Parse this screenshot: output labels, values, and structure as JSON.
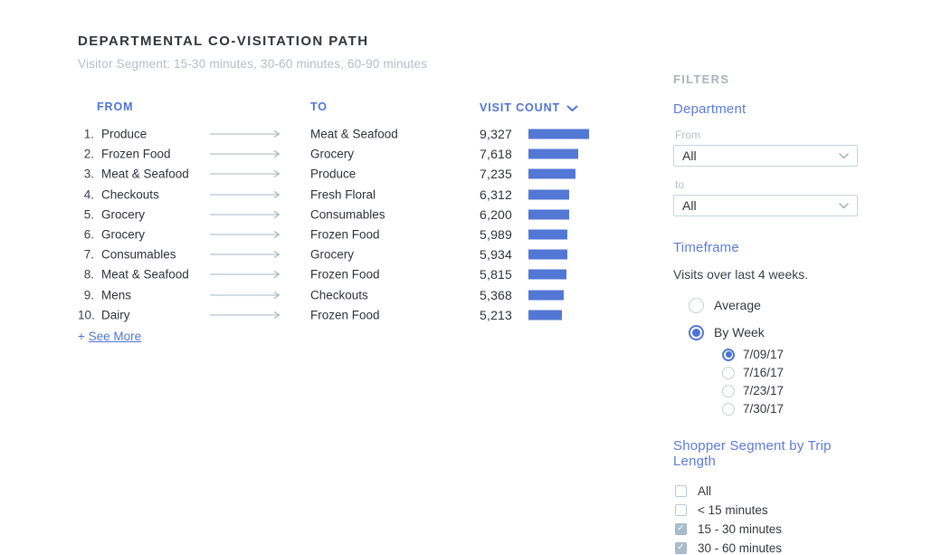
{
  "report": {
    "title": "DEPARTMENTAL CO-VISITATION PATH",
    "subtitle": "Visitor Segment: 15-30 minutes, 30-60 minutes, 60-90 minutes",
    "see_more_prefix": "+ ",
    "see_more_label": "See More"
  },
  "chart_data": {
    "type": "table",
    "title": "Departmental Co-Visitation Path",
    "columns": [
      "FROM",
      "TO",
      "VISIT COUNT"
    ],
    "sort": {
      "column": "VISIT COUNT",
      "direction": "desc"
    },
    "max_value": 9327,
    "bar_color": "#5377d4",
    "rows": [
      {
        "rank": "1.",
        "from": "Produce",
        "to": "Meat & Seafood",
        "count": "9,327",
        "value": 9327
      },
      {
        "rank": "2.",
        "from": "Frozen Food",
        "to": "Grocery",
        "count": "7,618",
        "value": 7618
      },
      {
        "rank": "3.",
        "from": "Meat & Seafood",
        "to": "Produce",
        "count": "7,235",
        "value": 7235
      },
      {
        "rank": "4.",
        "from": "Checkouts",
        "to": "Fresh Floral",
        "count": "6,312",
        "value": 6312
      },
      {
        "rank": "5.",
        "from": "Grocery",
        "to": "Consumables",
        "count": "6,200",
        "value": 6200
      },
      {
        "rank": "6.",
        "from": "Grocery",
        "to": "Frozen Food",
        "count": "5,989",
        "value": 5989
      },
      {
        "rank": "7.",
        "from": "Consumables",
        "to": "Grocery",
        "count": "5,934",
        "value": 5934
      },
      {
        "rank": "8.",
        "from": "Meat & Seafood",
        "to": "Frozen Food",
        "count": "5,815",
        "value": 5815
      },
      {
        "rank": "9.",
        "from": "Mens",
        "to": "Checkouts",
        "count": "5,368",
        "value": 5368
      },
      {
        "rank": "10.",
        "from": "Dairy",
        "to": "Frozen Food",
        "count": "5,213",
        "value": 5213
      }
    ]
  },
  "filters": {
    "heading": "FILTERS",
    "department": {
      "heading": "Department",
      "from_label": "From",
      "from_value": "All",
      "to_label": "to",
      "to_value": "All"
    },
    "timeframe": {
      "heading": "Timeframe",
      "description": "Visits over last 4 weeks.",
      "options": [
        {
          "label": "Average",
          "selected": false
        },
        {
          "label": "By Week",
          "selected": true
        }
      ],
      "weeks": [
        {
          "label": "7/09/17",
          "selected": true
        },
        {
          "label": "7/16/17",
          "selected": false
        },
        {
          "label": "7/23/17",
          "selected": false
        },
        {
          "label": "7/30/17",
          "selected": false
        }
      ]
    },
    "shopper_segment": {
      "heading": "Shopper Segment by Trip Length",
      "options": [
        {
          "label": "All",
          "checked": false
        },
        {
          "label": "< 15 minutes",
          "checked": false
        },
        {
          "label": "15 - 30 minutes",
          "checked": true
        },
        {
          "label": "30 - 60 minutes",
          "checked": true
        }
      ]
    }
  },
  "colors": {
    "accent_blue": "#4f74d8",
    "bar_blue": "#5377d4",
    "section_heading_blue": "#5a7ae0",
    "subtitle_gray": "#b4bcc8",
    "filters_heading_gray": "#a9b2c0",
    "arrow_gray": "#aab6c4",
    "text_dark": "#32353c",
    "checkbox_checked_fill": "#a9bccd"
  }
}
